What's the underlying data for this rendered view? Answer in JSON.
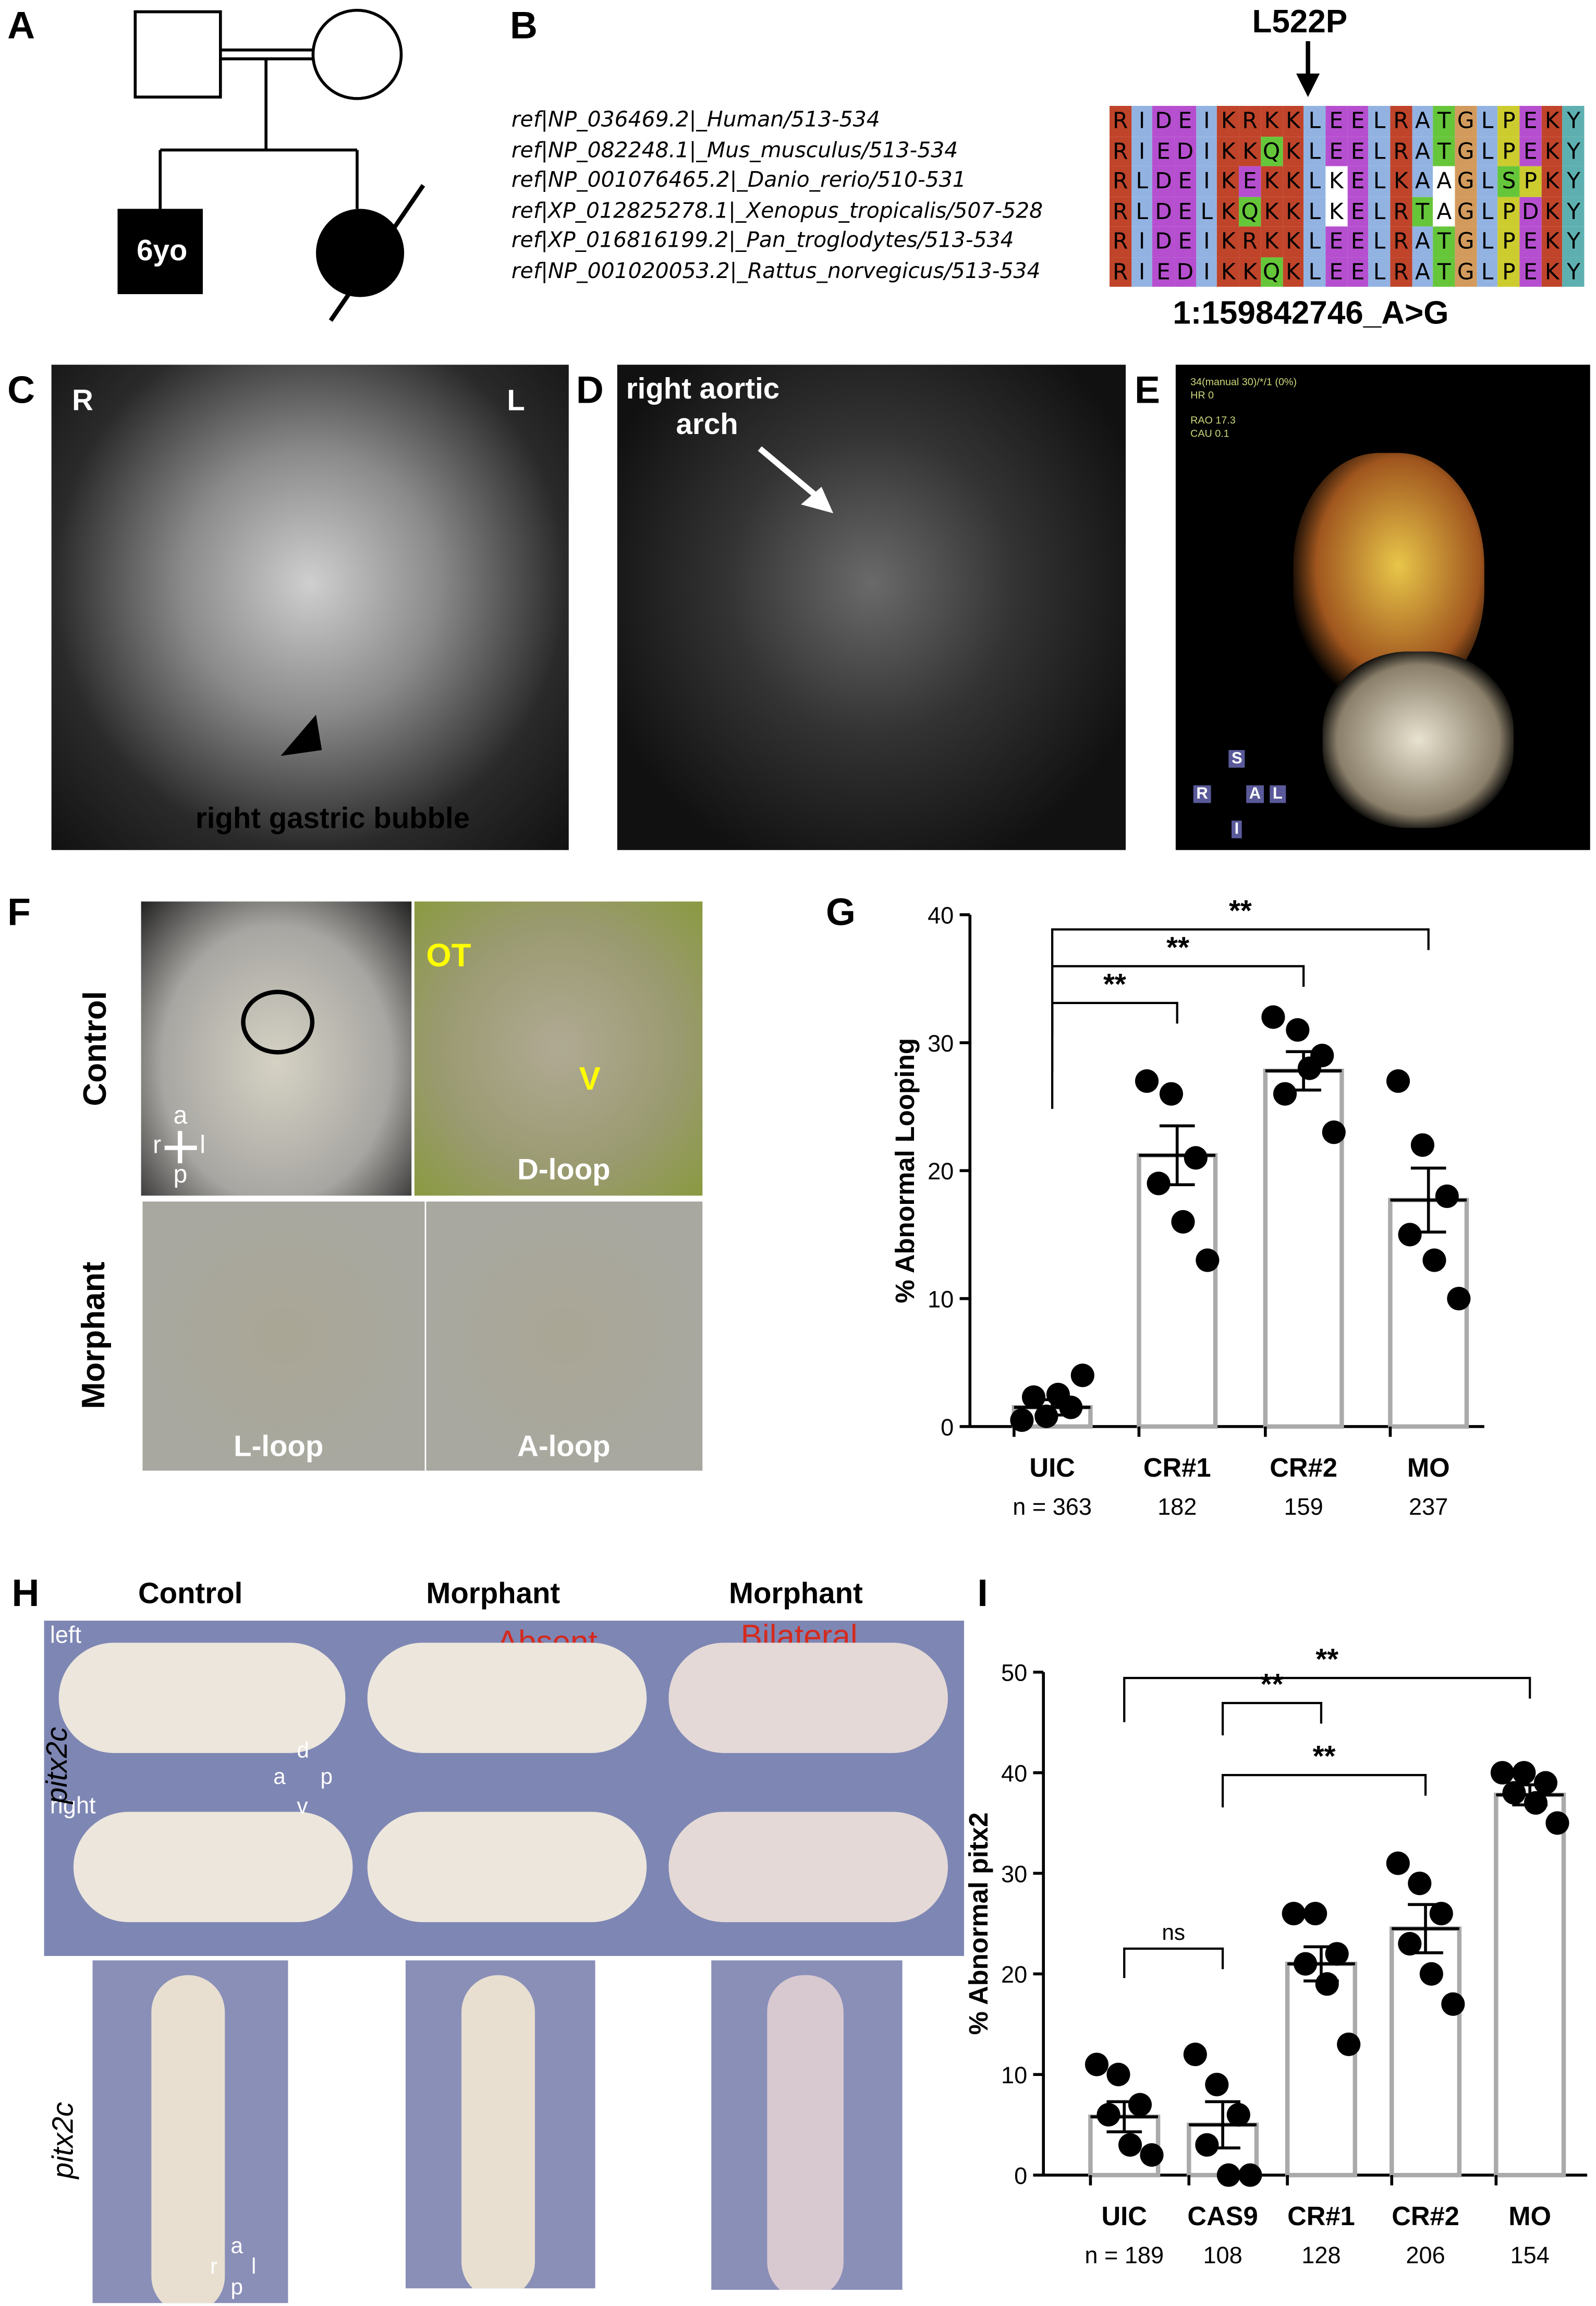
{
  "panels": {
    "A": {
      "label": "A",
      "proband_age": "6yo"
    },
    "B": {
      "label": "B",
      "variant_label": "L522P",
      "genomic_variant": "1:159842746_A>G",
      "sequence_names": [
        "ref|NP_036469.2|_Human/513-534",
        "ref|NP_082248.1|_Mus_musculus/513-534",
        "ref|NP_001076465.2|_Danio_rerio/510-531",
        "ref|XP_012825278.1|_Xenopus_tropicalis/507-528",
        "ref|XP_016816199.2|_Pan_troglodytes/513-534",
        "ref|NP_001020053.2|_Rattus_norvegicus/513-534"
      ],
      "sequences": [
        "RIDEIKRKKLEELRATGLPEKY",
        "RIEDIKKQKLEELRATGLPEKY",
        "RLDEIKEKKLKELKAAGLSPKY",
        "RLDELKQKKLKELRTAGLPDKY",
        "RIDEIKRKKLEELRATGLPEKY",
        "RIEDIKKQKLEELRATGLPEKY"
      ],
      "color_codes": [
        "rbmmbrrrrbmmbrbgobymrc",
        "rbmmbrrgrbmmbrbgobymrc",
        "rbmmbrmrrbwmbrbwobgyrc",
        "rbmmbrgrrbwmbrgwobymrc",
        "rbmmbrrrrbmmbrbgobymrc",
        "rbmmbrrgrbmmbrbgobymrc"
      ],
      "palette": {
        "r": "#c0442a",
        "b": "#92b3e2",
        "m": "#b64fcf",
        "g": "#66c63a",
        "o": "#d29a5c",
        "y": "#cccc2e",
        "c": "#5eb0b0",
        "w": "#ffffff"
      }
    },
    "C": {
      "label": "C",
      "right": "R",
      "left": "L",
      "annotation": "right gastric bubble"
    },
    "D": {
      "label": "D",
      "annotation_line1": "right aortic",
      "annotation_line2": "arch"
    },
    "E": {
      "label": "E",
      "overlay": [
        "34(manual 30)/*/1 (0%)",
        "HR 0",
        "RAO 17.3",
        "CAU 0.1"
      ],
      "orient": {
        "s": "S",
        "r": "R",
        "a": "A",
        "l": "L",
        "i": "I"
      }
    },
    "F": {
      "label": "F",
      "row_control": "Control",
      "row_morphant": "Morphant",
      "OT": "OT",
      "V": "V",
      "d_loop": "D-loop",
      "l_loop": "L-loop",
      "a_loop": "A-loop",
      "axis": {
        "a": "a",
        "p": "p",
        "r": "r",
        "l": "l"
      }
    },
    "H": {
      "label": "H",
      "col_control": "Control",
      "col_morphant1": "Morphant",
      "col_morphant2": "Morphant",
      "absent": "Absent",
      "bilateral": "Bilateral",
      "left": "left",
      "right": "right",
      "gene": "pitx2c",
      "gene2": "pitx2c",
      "axis1": {
        "d": "d",
        "v": "v",
        "a": "a",
        "p": "p"
      },
      "axis2": {
        "a": "a",
        "p": "p",
        "r": "r",
        "l": "l"
      }
    }
  },
  "chart_data": [
    {
      "panel": "G",
      "type": "bar",
      "ylabel": "% Abnormal Looping",
      "ylim": [
        0,
        40
      ],
      "yticks": [
        "0",
        "10",
        "20",
        "30",
        "40"
      ],
      "categories": [
        "UIC",
        "CR#1",
        "CR#2",
        "MO"
      ],
      "n_labels": [
        "n = 363",
        "182",
        "159",
        "237"
      ],
      "means": [
        1.5,
        21.2,
        27.8,
        17.7
      ],
      "sem": [
        0.6,
        2.3,
        1.5,
        2.5
      ],
      "points": [
        [
          0.5,
          0.8,
          1.5,
          2.3,
          2.5,
          4
        ],
        [
          27,
          26,
          21,
          19,
          16,
          13
        ],
        [
          32,
          31,
          29,
          26,
          28,
          23
        ],
        [
          27,
          22,
          18,
          15,
          13,
          10
        ]
      ],
      "significance": [
        {
          "from": "UIC",
          "to": "CR#1",
          "label": "**"
        },
        {
          "from": "UIC",
          "to": "CR#2",
          "label": "**"
        },
        {
          "from": "UIC",
          "to": "MO",
          "label": "**"
        }
      ]
    },
    {
      "panel": "I",
      "type": "bar",
      "ylabel": "% Abnormal pitx2",
      "ylim": [
        0,
        50
      ],
      "yticks": [
        "0",
        "10",
        "20",
        "30",
        "40",
        "50"
      ],
      "categories": [
        "UIC",
        "CAS9",
        "CR#1",
        "CR#2",
        "MO"
      ],
      "n_labels": [
        "n = 189",
        "108",
        "128",
        "206",
        "154"
      ],
      "means": [
        5.8,
        5.0,
        21.0,
        24.5,
        37.8
      ],
      "sem": [
        1.5,
        2.3,
        1.7,
        2.4,
        1.0
      ],
      "points": [
        [
          11,
          10,
          7,
          6,
          3,
          2
        ],
        [
          12,
          9,
          6,
          3,
          0,
          0
        ],
        [
          26,
          26,
          22,
          21,
          19,
          13
        ],
        [
          31,
          29,
          26,
          23,
          20,
          17
        ],
        [
          40,
          40,
          39,
          38,
          37,
          35
        ]
      ],
      "significance": [
        {
          "from": "UIC",
          "to": "CAS9",
          "label": "ns"
        },
        {
          "from": "CAS9",
          "to": "CR#1",
          "label": "**"
        },
        {
          "from": "CAS9",
          "to": "CR#2",
          "label": "**"
        },
        {
          "from": "UIC",
          "to": "MO",
          "label": "**"
        }
      ]
    }
  ]
}
